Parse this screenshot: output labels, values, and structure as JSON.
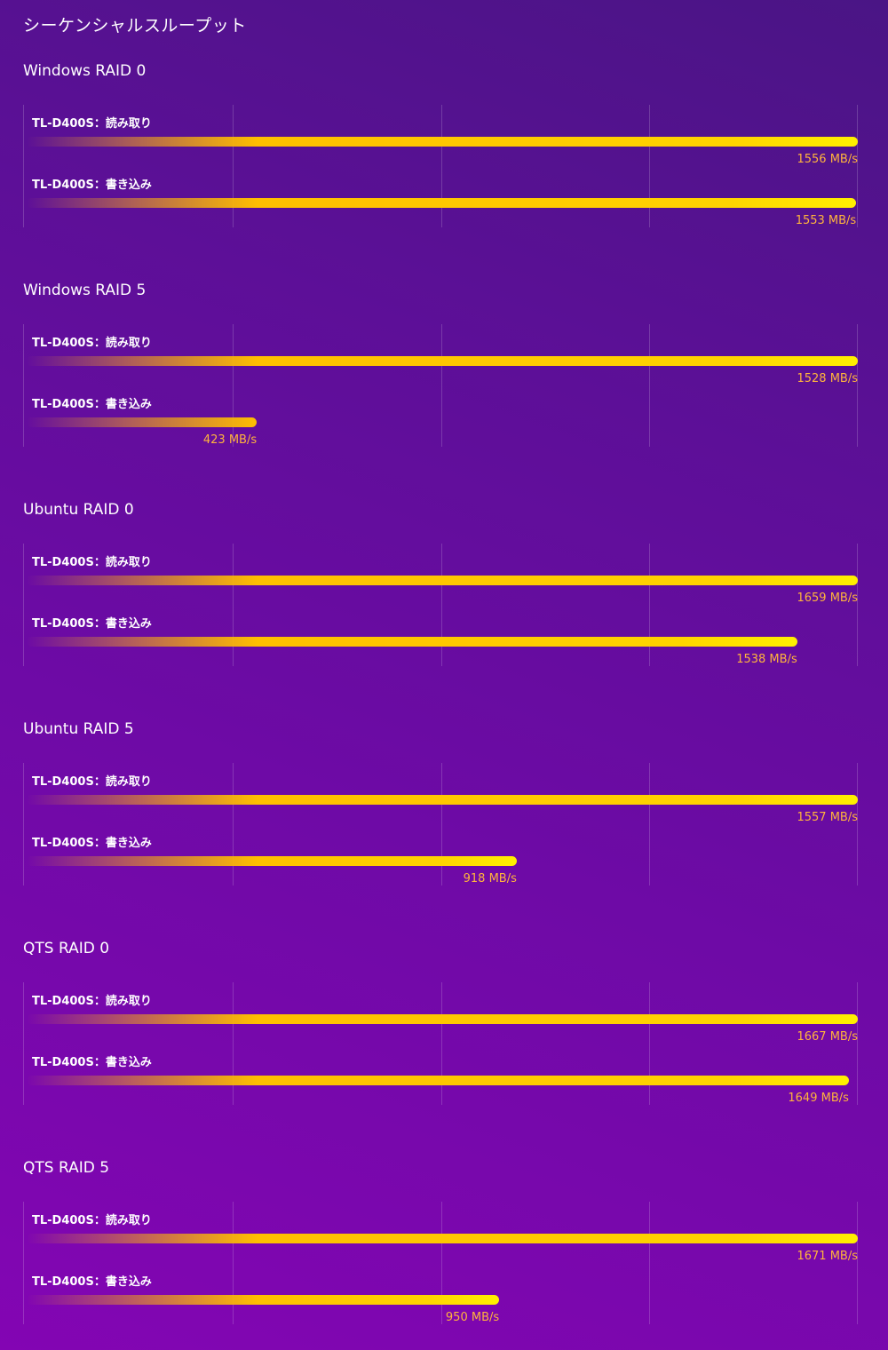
{
  "page_title": "シーケンシャルスループット",
  "chart_data": [
    {
      "type": "bar",
      "title": "Windows RAID 0",
      "series": [
        {
          "name": "TL-D400S：読み取り",
          "value": 1556,
          "value_label": "1556 MB/s"
        },
        {
          "name": "TL-D400S：書き込み",
          "value": 1553,
          "value_label": "1553 MB/s"
        }
      ]
    },
    {
      "type": "bar",
      "title": "Windows RAID 5",
      "series": [
        {
          "name": "TL-D400S：読み取り",
          "value": 1528,
          "value_label": "1528 MB/s"
        },
        {
          "name": "TL-D400S：書き込み",
          "value": 423,
          "value_label": "423 MB/s"
        }
      ]
    },
    {
      "type": "bar",
      "title": "Ubuntu RAID 0",
      "series": [
        {
          "name": "TL-D400S：読み取り",
          "value": 1659,
          "value_label": "1659 MB/s"
        },
        {
          "name": "TL-D400S：書き込み",
          "value": 1538,
          "value_label": "1538 MB/s"
        }
      ]
    },
    {
      "type": "bar",
      "title": "Ubuntu RAID 5",
      "series": [
        {
          "name": "TL-D400S：読み取り",
          "value": 1557,
          "value_label": "1557 MB/s"
        },
        {
          "name": "TL-D400S：書き込み",
          "value": 918,
          "value_label": "918 MB/s"
        }
      ]
    },
    {
      "type": "bar",
      "title": "QTS RAID 0",
      "series": [
        {
          "name": "TL-D400S：読み取り",
          "value": 1667,
          "value_label": "1667 MB/s"
        },
        {
          "name": "TL-D400S：書き込み",
          "value": 1649,
          "value_label": "1649 MB/s"
        }
      ]
    },
    {
      "type": "bar",
      "title": "QTS RAID 5",
      "series": [
        {
          "name": "TL-D400S：読み取り",
          "value": 1671,
          "value_label": "1671 MB/s"
        },
        {
          "name": "TL-D400S：書き込み",
          "value": 950,
          "value_label": "950 MB/s"
        }
      ]
    }
  ],
  "colors": {
    "background_top": "#4a1585",
    "background_bottom": "#8305b3",
    "bar_start": "#ffbf00",
    "bar_end": "#fff000",
    "value_text": "#ffb43c"
  }
}
